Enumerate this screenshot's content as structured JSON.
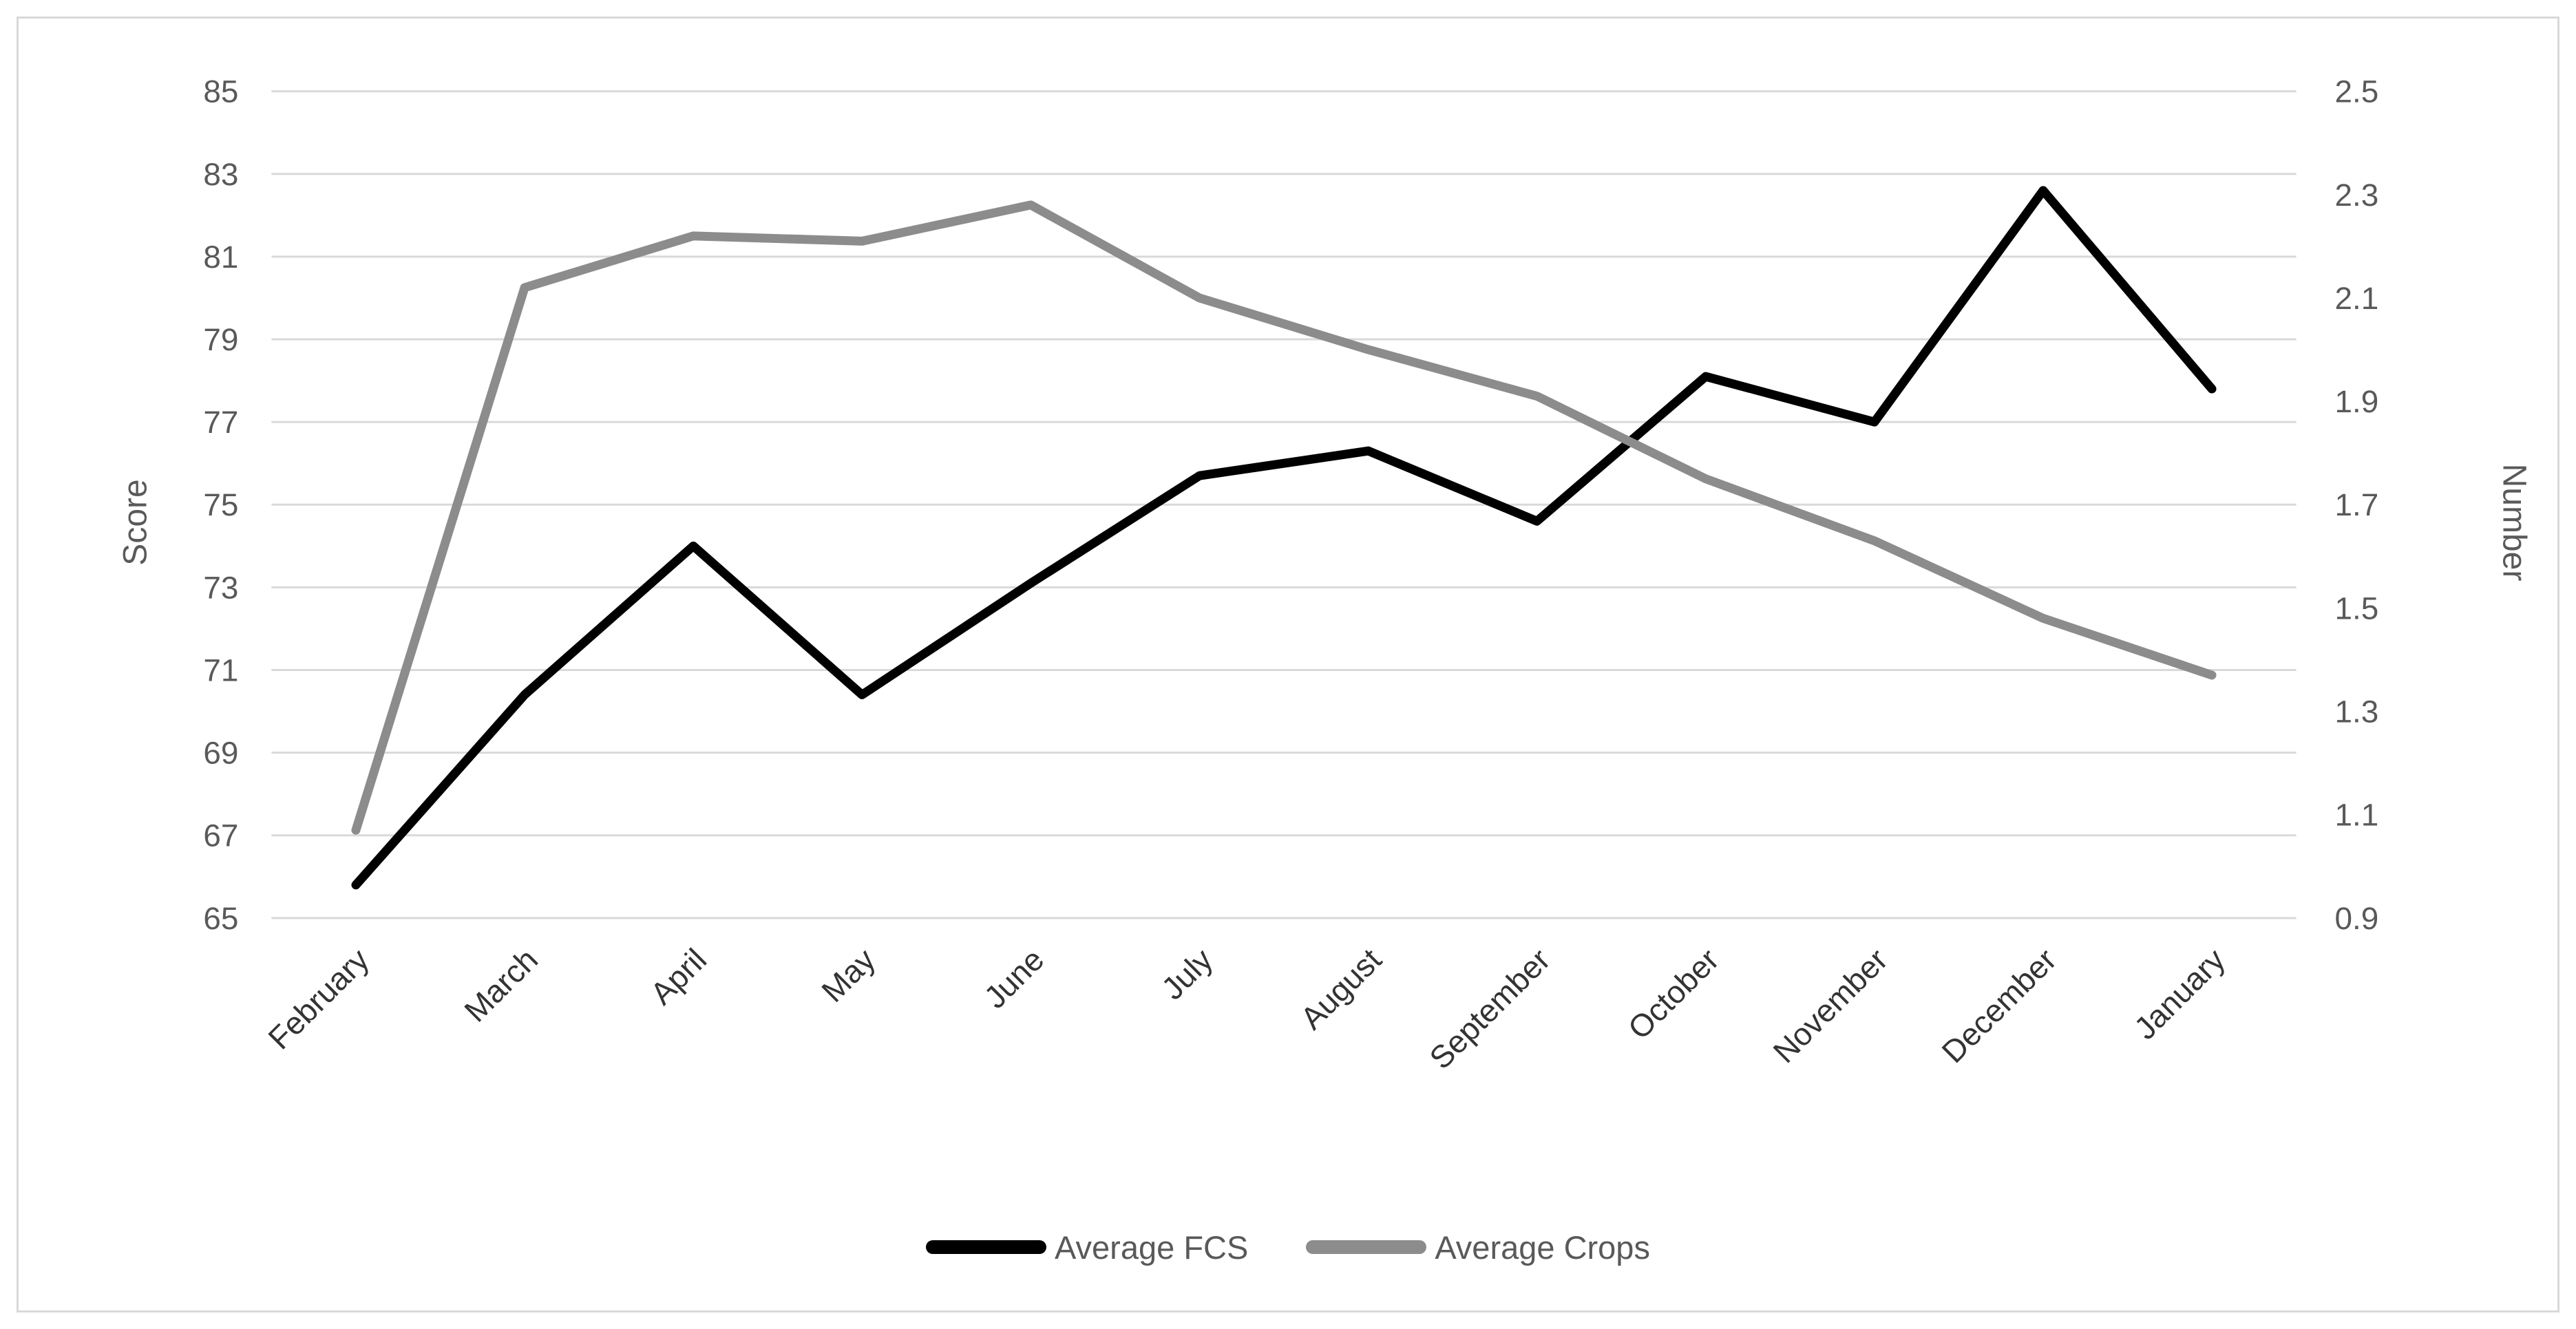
{
  "chart_data": {
    "type": "line",
    "title": "",
    "categories": [
      "February",
      "March",
      "April",
      "May",
      "June",
      "July",
      "August",
      "September",
      "October",
      "November",
      "December",
      "January"
    ],
    "series": [
      {
        "name": "Average FCS",
        "axis": "left",
        "color": "#000000",
        "values": [
          65.8,
          70.4,
          74.0,
          70.4,
          73.1,
          75.7,
          76.3,
          74.6,
          78.1,
          77.0,
          82.6,
          77.8
        ]
      },
      {
        "name": "Average Crops",
        "axis": "right",
        "color": "#8C8C8C",
        "values": [
          1.07,
          2.12,
          2.22,
          2.21,
          2.28,
          2.1,
          2.0,
          1.91,
          1.75,
          1.63,
          1.48,
          1.37
        ]
      }
    ],
    "left_axis": {
      "title": "Score",
      "min": 65,
      "max": 85,
      "tick_step": 2,
      "ticks": [
        85,
        83,
        81,
        79,
        77,
        75,
        73,
        71,
        69,
        67,
        65
      ]
    },
    "right_axis": {
      "title": "Number",
      "min": 0.9,
      "max": 2.5,
      "tick_step": 0.2,
      "ticks": [
        "2.5",
        "2.3",
        "2.1",
        "1.9",
        "1.7",
        "1.5",
        "1.3",
        "1.1",
        "0.9"
      ]
    },
    "legend": {
      "position": "bottom",
      "entries": [
        "Average FCS",
        "Average Crops"
      ]
    },
    "grid": "horizontal",
    "x_label_rotation_deg": 45,
    "colors": {
      "background": "#FFFFFF",
      "border": "#D9D9D9",
      "gridline": "#D9D9D9",
      "tick_label": "#595959",
      "month_label": "#333333",
      "axis_title": "#595959",
      "series_fcs": "#000000",
      "series_crops": "#8C8C8C"
    }
  }
}
